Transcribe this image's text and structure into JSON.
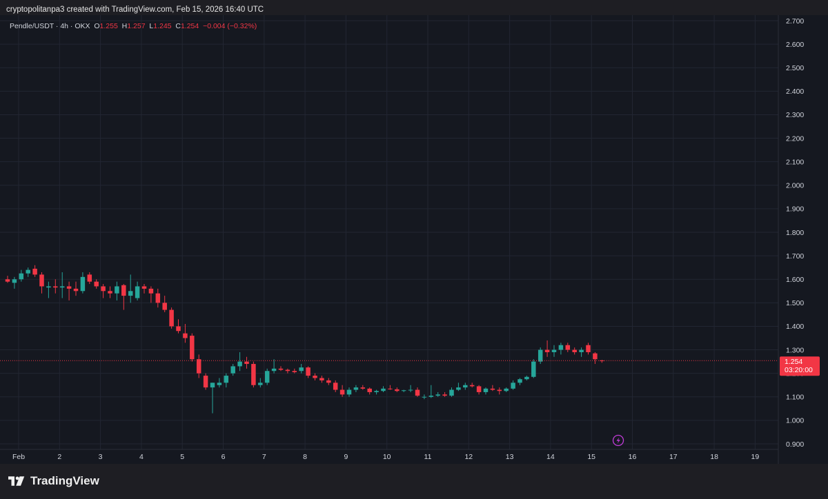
{
  "header": {
    "credit": "cryptopolitanpa3 created with TradingView.com, Feb 15, 2026 16:40 UTC"
  },
  "legend": {
    "symbol": "Pendle/USDT · 4h · OKX",
    "o_label": "O",
    "o_value": "1.255",
    "h_label": "H",
    "h_value": "1.257",
    "l_label": "L",
    "l_value": "1.245",
    "c_label": "C",
    "c_value": "1.254",
    "change": "−0.004 (−0.32%)"
  },
  "price_tag": {
    "price": "1.254",
    "countdown": "03:20:00"
  },
  "footer": {
    "logo_text": "TradingView",
    "logo_icon": "tradingview-logo-icon"
  },
  "icons": {
    "event": "lightning-icon"
  },
  "colors": {
    "up": "#26a69a",
    "down": "#f23645",
    "price_line": "#f23645",
    "event": "#c13bd8"
  },
  "chart_data": {
    "type": "candlestick",
    "title": "",
    "xlabel": "",
    "ylabel": "",
    "ylim": [
      0.88,
      2.72
    ],
    "y_ticks": [
      "2.700",
      "2.600",
      "2.500",
      "2.400",
      "2.300",
      "2.200",
      "2.100",
      "2.000",
      "1.900",
      "1.800",
      "1.700",
      "1.600",
      "1.500",
      "1.400",
      "1.300",
      "1.200",
      "1.100",
      "1.000",
      "0.900"
    ],
    "x_ticks": [
      "Feb",
      "2",
      "3",
      "4",
      "5",
      "6",
      "7",
      "8",
      "9",
      "10",
      "11",
      "12",
      "13",
      "14",
      "15",
      "16",
      "17",
      "18",
      "19"
    ],
    "last_price": 1.254,
    "grid": true,
    "candles": [
      [
        1.6,
        1.615,
        1.585,
        1.59
      ],
      [
        1.585,
        1.61,
        1.56,
        1.6
      ],
      [
        1.6,
        1.64,
        1.59,
        1.625
      ],
      [
        1.625,
        1.65,
        1.61,
        1.64
      ],
      [
        1.645,
        1.66,
        1.61,
        1.62
      ],
      [
        1.62,
        1.63,
        1.54,
        1.57
      ],
      [
        1.565,
        1.59,
        1.52,
        1.57
      ],
      [
        1.57,
        1.6,
        1.54,
        1.565
      ],
      [
        1.565,
        1.63,
        1.52,
        1.57
      ],
      [
        1.57,
        1.59,
        1.51,
        1.56
      ],
      [
        1.56,
        1.59,
        1.53,
        1.55
      ],
      [
        1.55,
        1.63,
        1.54,
        1.61
      ],
      [
        1.62,
        1.63,
        1.58,
        1.59
      ],
      [
        1.59,
        1.6,
        1.56,
        1.57
      ],
      [
        1.57,
        1.58,
        1.52,
        1.55
      ],
      [
        1.55,
        1.57,
        1.52,
        1.54
      ],
      [
        1.54,
        1.59,
        1.51,
        1.57
      ],
      [
        1.575,
        1.58,
        1.47,
        1.53
      ],
      [
        1.53,
        1.62,
        1.5,
        1.55
      ],
      [
        1.52,
        1.59,
        1.51,
        1.57
      ],
      [
        1.57,
        1.58,
        1.54,
        1.56
      ],
      [
        1.56,
        1.57,
        1.5,
        1.54
      ],
      [
        1.54,
        1.56,
        1.48,
        1.5
      ],
      [
        1.5,
        1.53,
        1.46,
        1.47
      ],
      [
        1.47,
        1.48,
        1.39,
        1.4
      ],
      [
        1.4,
        1.43,
        1.37,
        1.38
      ],
      [
        1.37,
        1.41,
        1.33,
        1.35
      ],
      [
        1.36,
        1.37,
        1.25,
        1.26
      ],
      [
        1.26,
        1.28,
        1.18,
        1.2
      ],
      [
        1.19,
        1.2,
        1.13,
        1.14
      ],
      [
        1.14,
        1.16,
        1.03,
        1.16
      ],
      [
        1.15,
        1.18,
        1.14,
        1.16
      ],
      [
        1.16,
        1.2,
        1.14,
        1.19
      ],
      [
        1.2,
        1.24,
        1.19,
        1.23
      ],
      [
        1.23,
        1.29,
        1.21,
        1.25
      ],
      [
        1.25,
        1.27,
        1.22,
        1.24
      ],
      [
        1.24,
        1.25,
        1.14,
        1.15
      ],
      [
        1.15,
        1.18,
        1.14,
        1.16
      ],
      [
        1.16,
        1.22,
        1.15,
        1.21
      ],
      [
        1.21,
        1.26,
        1.2,
        1.22
      ],
      [
        1.22,
        1.23,
        1.21,
        1.215
      ],
      [
        1.215,
        1.22,
        1.2,
        1.21
      ],
      [
        1.21,
        1.22,
        1.2,
        1.205
      ],
      [
        1.21,
        1.24,
        1.2,
        1.225
      ],
      [
        1.225,
        1.23,
        1.18,
        1.19
      ],
      [
        1.19,
        1.2,
        1.17,
        1.18
      ],
      [
        1.18,
        1.19,
        1.16,
        1.17
      ],
      [
        1.17,
        1.18,
        1.15,
        1.16
      ],
      [
        1.16,
        1.17,
        1.12,
        1.13
      ],
      [
        1.13,
        1.15,
        1.1,
        1.11
      ],
      [
        1.11,
        1.14,
        1.1,
        1.13
      ],
      [
        1.13,
        1.15,
        1.12,
        1.14
      ],
      [
        1.14,
        1.15,
        1.13,
        1.135
      ],
      [
        1.135,
        1.14,
        1.11,
        1.12
      ],
      [
        1.12,
        1.13,
        1.11,
        1.125
      ],
      [
        1.125,
        1.145,
        1.12,
        1.135
      ],
      [
        1.135,
        1.15,
        1.13,
        1.132
      ],
      [
        1.132,
        1.14,
        1.12,
        1.125
      ],
      [
        1.125,
        1.13,
        1.12,
        1.128
      ],
      [
        1.128,
        1.15,
        1.12,
        1.13
      ],
      [
        1.13,
        1.14,
        1.1,
        1.105
      ],
      [
        1.1,
        1.11,
        1.09,
        1.1
      ],
      [
        1.1,
        1.15,
        1.095,
        1.105
      ],
      [
        1.105,
        1.12,
        1.1,
        1.11
      ],
      [
        1.11,
        1.12,
        1.1,
        1.105
      ],
      [
        1.105,
        1.14,
        1.1,
        1.13
      ],
      [
        1.13,
        1.16,
        1.125,
        1.14
      ],
      [
        1.14,
        1.16,
        1.13,
        1.15
      ],
      [
        1.15,
        1.16,
        1.14,
        1.145
      ],
      [
        1.145,
        1.15,
        1.11,
        1.12
      ],
      [
        1.12,
        1.14,
        1.11,
        1.135
      ],
      [
        1.135,
        1.15,
        1.125,
        1.13
      ],
      [
        1.13,
        1.14,
        1.11,
        1.125
      ],
      [
        1.125,
        1.14,
        1.12,
        1.135
      ],
      [
        1.135,
        1.17,
        1.13,
        1.16
      ],
      [
        1.16,
        1.18,
        1.15,
        1.175
      ],
      [
        1.175,
        1.19,
        1.17,
        1.185
      ],
      [
        1.185,
        1.26,
        1.18,
        1.25
      ],
      [
        1.25,
        1.31,
        1.24,
        1.3
      ],
      [
        1.3,
        1.34,
        1.27,
        1.29
      ],
      [
        1.29,
        1.32,
        1.27,
        1.3
      ],
      [
        1.3,
        1.33,
        1.28,
        1.32
      ],
      [
        1.32,
        1.33,
        1.29,
        1.3
      ],
      [
        1.3,
        1.31,
        1.28,
        1.29
      ],
      [
        1.29,
        1.31,
        1.27,
        1.3
      ],
      [
        1.32,
        1.33,
        1.28,
        1.29
      ],
      [
        1.285,
        1.29,
        1.24,
        1.26
      ],
      [
        1.255,
        1.257,
        1.245,
        1.254
      ]
    ]
  }
}
